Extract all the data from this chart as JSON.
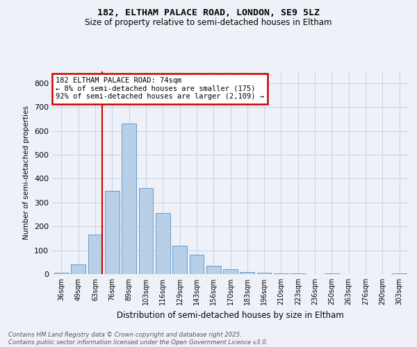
{
  "title1": "182, ELTHAM PALACE ROAD, LONDON, SE9 5LZ",
  "title2": "Size of property relative to semi-detached houses in Eltham",
  "xlabel": "Distribution of semi-detached houses by size in Eltham",
  "ylabel": "Number of semi-detached properties",
  "categories": [
    "36sqm",
    "49sqm",
    "63sqm",
    "76sqm",
    "89sqm",
    "103sqm",
    "116sqm",
    "129sqm",
    "143sqm",
    "156sqm",
    "170sqm",
    "183sqm",
    "196sqm",
    "210sqm",
    "223sqm",
    "236sqm",
    "250sqm",
    "263sqm",
    "276sqm",
    "290sqm",
    "303sqm"
  ],
  "values": [
    5,
    40,
    165,
    350,
    630,
    360,
    255,
    120,
    80,
    35,
    20,
    10,
    5,
    3,
    2,
    1,
    2,
    0,
    0,
    0,
    3
  ],
  "bar_color": "#b8cfe8",
  "bar_edge_color": "#6699cc",
  "annotation_text": "182 ELTHAM PALACE ROAD: 74sqm\n← 8% of semi-detached houses are smaller (175)\n92% of semi-detached houses are larger (2,109) →",
  "annotation_box_color": "#ffffff",
  "annotation_box_edge_color": "#cc0000",
  "vline_color": "#cc0000",
  "grid_color": "#c8d4e8",
  "background_color": "#eef2f8",
  "footer_text": "Contains HM Land Registry data © Crown copyright and database right 2025.\nContains public sector information licensed under the Open Government Licence v3.0.",
  "ylim": [
    0,
    850
  ],
  "yticks": [
    0,
    100,
    200,
    300,
    400,
    500,
    600,
    700,
    800
  ],
  "vline_bin_index": 2,
  "bar_width": 0.85
}
